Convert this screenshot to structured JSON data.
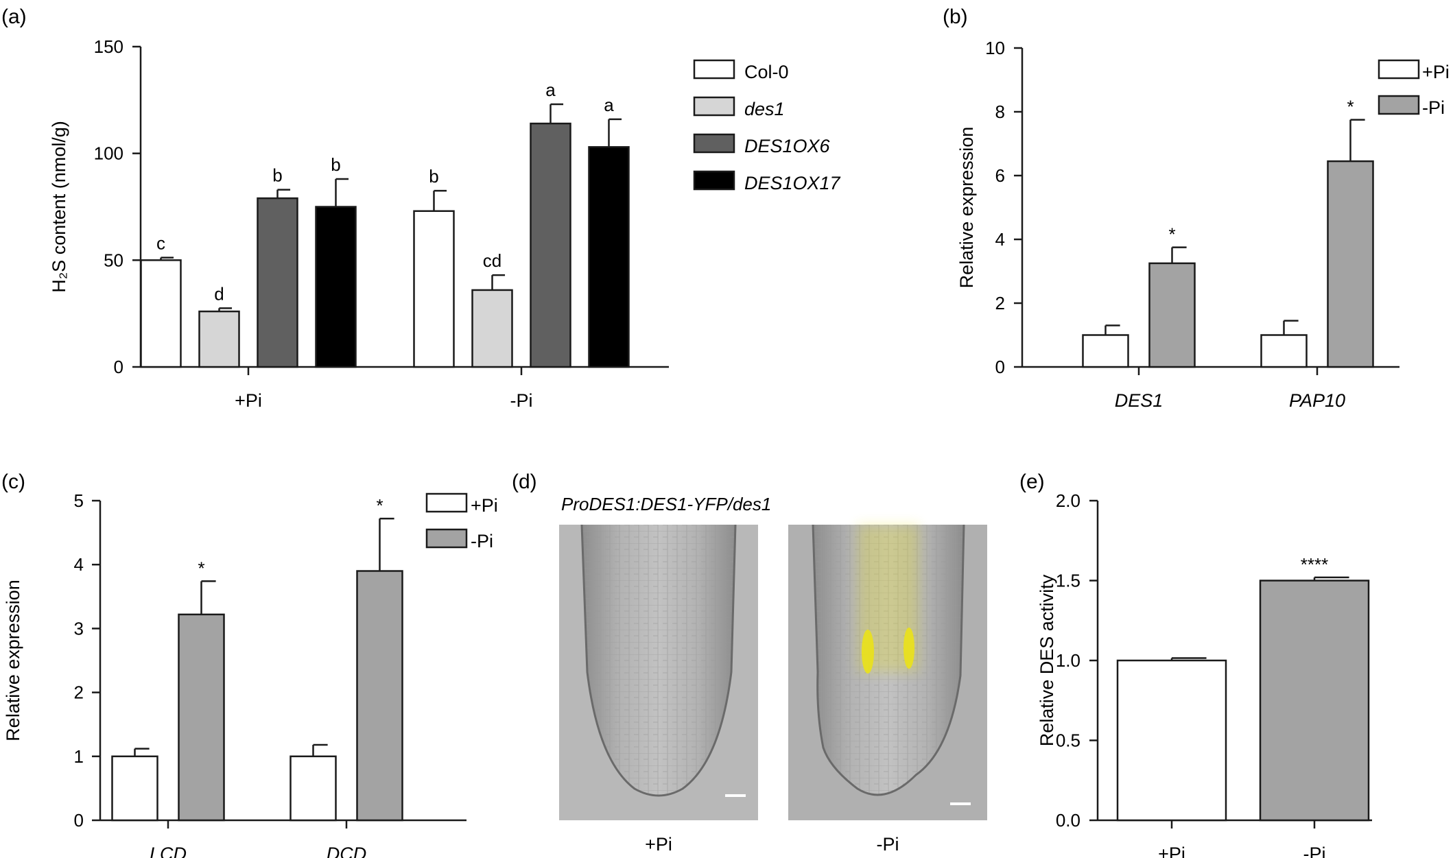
{
  "colors": {
    "white": "#ffffff",
    "light_gray": "#d6d6d6",
    "dark_gray": "#606060",
    "black": "#000000",
    "mid_gray": "#a3a3a3",
    "outline": "#1a1a1a",
    "yfp": "#e9e01f"
  },
  "panel_labels": [
    "(a)",
    "(b)",
    "(c)",
    "(d)",
    "(e)"
  ],
  "chart_data": [
    {
      "panel": "(a)",
      "type": "bar",
      "categories": [
        "+Pi",
        "-Pi"
      ],
      "series": [
        {
          "name": "Col-0",
          "values": [
            50,
            73
          ],
          "errors": [
            1.2,
            9.5
          ],
          "sig": [
            "c",
            "b"
          ],
          "color": "white"
        },
        {
          "name": "des1",
          "values": [
            26,
            36
          ],
          "errors": [
            1.5,
            7
          ],
          "sig": [
            "d",
            "cd"
          ],
          "color": "light_gray",
          "italic": true
        },
        {
          "name": "DES1OX6",
          "values": [
            79,
            114
          ],
          "errors": [
            4,
            9
          ],
          "sig": [
            "b",
            "a"
          ],
          "color": "dark_gray",
          "italic": true
        },
        {
          "name": "DES1OX17",
          "values": [
            75,
            103
          ],
          "errors": [
            13,
            13
          ],
          "sig": [
            "b",
            "a"
          ],
          "color": "black",
          "italic": true
        }
      ],
      "ylabel": "H₂S content (nmol/g)",
      "ylim": [
        0,
        150
      ],
      "yticks": [
        "0",
        "50",
        "100",
        "150"
      ],
      "legend": "right"
    },
    {
      "panel": "(b)",
      "type": "bar",
      "categories": [
        "DES1",
        "PAP10"
      ],
      "categories_italic": true,
      "series": [
        {
          "name": "+Pi",
          "values": [
            1.0,
            1.0
          ],
          "errors": [
            0.3,
            0.45
          ],
          "sig": [
            "",
            ""
          ],
          "color": "white"
        },
        {
          "name": "-Pi",
          "values": [
            3.25,
            6.45
          ],
          "errors": [
            0.5,
            1.3
          ],
          "sig": [
            "*",
            "*"
          ],
          "color": "mid_gray"
        }
      ],
      "ylabel": "Relative expression",
      "ylim": [
        0,
        10
      ],
      "yticks": [
        "0",
        "2",
        "4",
        "6",
        "8",
        "10"
      ],
      "legend": "top-right"
    },
    {
      "panel": "(c)",
      "type": "bar",
      "categories": [
        "LCD",
        "DCD"
      ],
      "categories_italic": true,
      "series": [
        {
          "name": "+Pi",
          "values": [
            1.0,
            1.0
          ],
          "errors": [
            0.12,
            0.18
          ],
          "sig": [
            "",
            ""
          ],
          "color": "white"
        },
        {
          "name": "-Pi",
          "values": [
            3.22,
            3.9
          ],
          "errors": [
            0.52,
            0.82
          ],
          "sig": [
            "*",
            "*"
          ],
          "color": "mid_gray"
        }
      ],
      "ylabel": "Relative expression",
      "ylim": [
        0,
        5
      ],
      "yticks": [
        "0",
        "1",
        "2",
        "3",
        "4",
        "5"
      ],
      "legend": "top-right"
    },
    {
      "panel": "(e)",
      "type": "bar",
      "categories": [
        "+Pi",
        "-Pi"
      ],
      "series": [
        {
          "name": "",
          "values": [
            1.0,
            1.5
          ],
          "errors": [
            0.015,
            0.02
          ],
          "sig": [
            "",
            "****"
          ],
          "colors": [
            "white",
            "mid_gray"
          ]
        }
      ],
      "ylabel": "Relative DES activity",
      "ylim": [
        0,
        2.0
      ],
      "yticks": [
        "0.0",
        "0.5",
        "1.0",
        "1.5",
        "2.0"
      ]
    }
  ],
  "micrograph": {
    "title": "ProDES1:DES1-YFP/des1",
    "labels": [
      "+Pi",
      "-Pi"
    ]
  }
}
